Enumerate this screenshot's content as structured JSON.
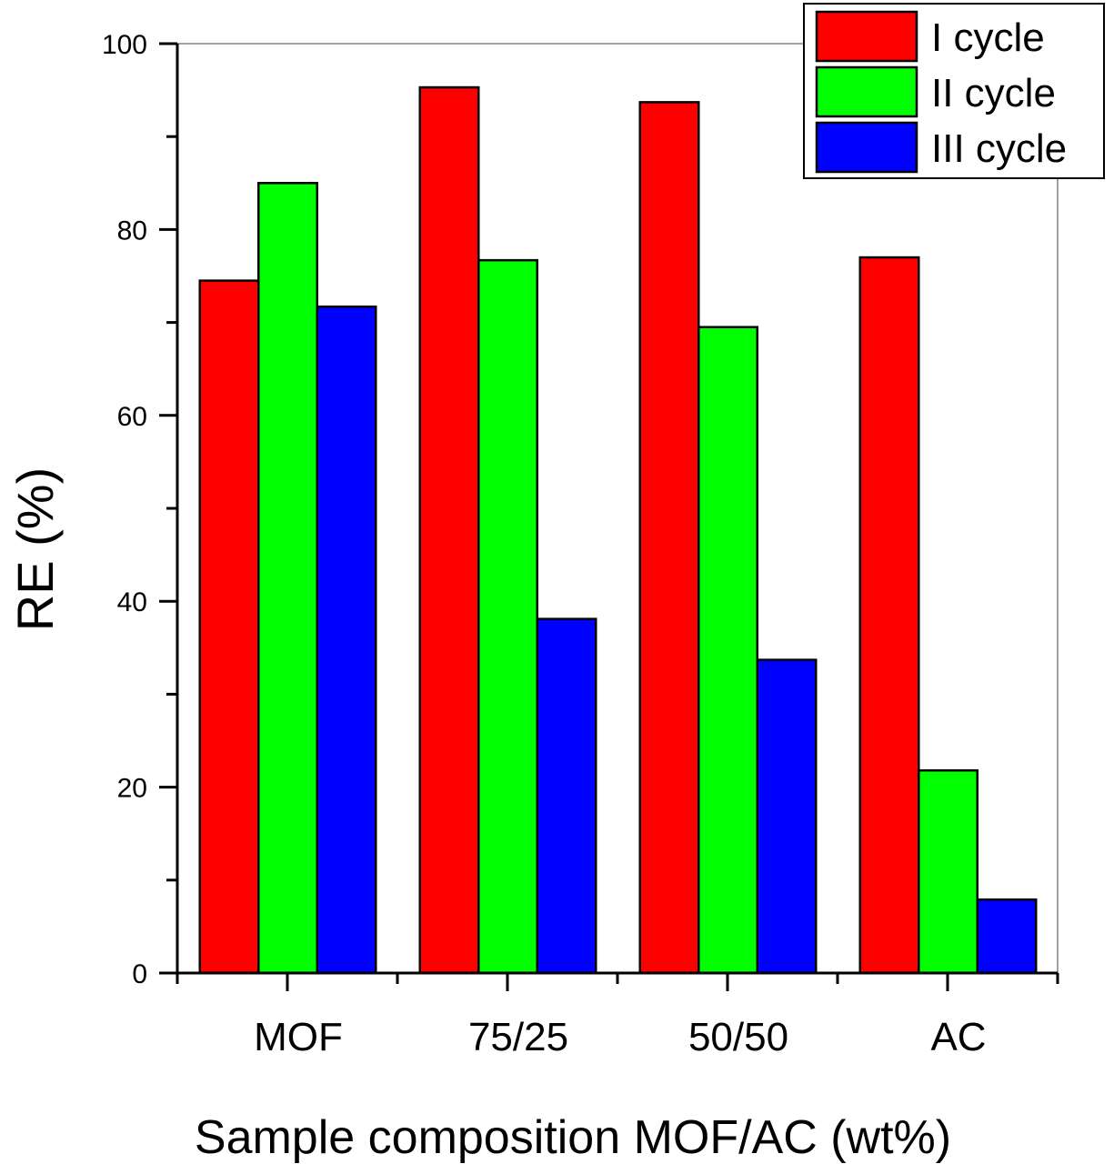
{
  "chart_data": {
    "type": "bar",
    "title": "",
    "xlabel": "Sample composition MOF/AC (wt%)",
    "ylabel": "RE (%)",
    "ylim": [
      0,
      100
    ],
    "yticks": [
      0,
      20,
      40,
      60,
      80,
      100
    ],
    "yticks_labels": [
      "0",
      "20",
      "40",
      "60",
      "80",
      "100"
    ],
    "categories": [
      "MOF",
      "75/25",
      "50/50",
      "AC"
    ],
    "series": [
      {
        "name": "I cycle",
        "color": "#ff0000",
        "values": [
          74.5,
          95.3,
          93.7,
          77.0
        ]
      },
      {
        "name": "II cycle",
        "color": "#00ff00",
        "values": [
          85.0,
          76.7,
          69.5,
          21.8
        ]
      },
      {
        "name": "III cycle",
        "color": "#0000ff",
        "values": [
          71.7,
          38.1,
          33.7,
          7.9
        ]
      }
    ],
    "legend_position": "top-right",
    "grid": false
  }
}
